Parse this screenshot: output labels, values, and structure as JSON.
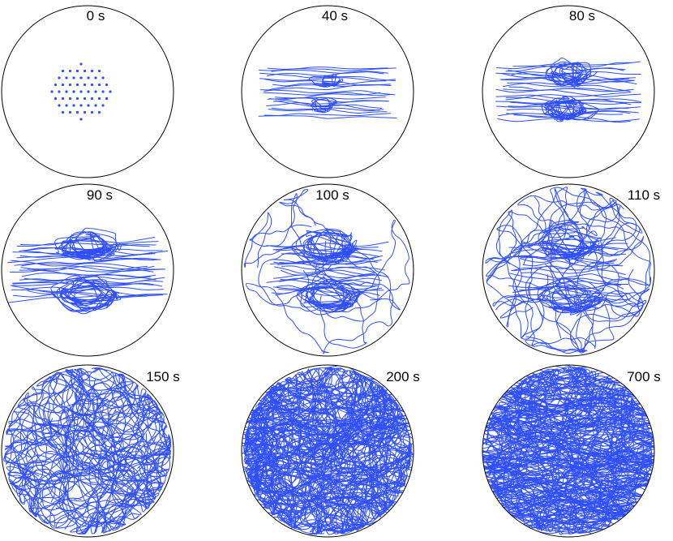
{
  "figure": {
    "trajectory_color": "#2f4fff",
    "panels": [
      {
        "time_label": "0 s",
        "stage": "initial"
      },
      {
        "time_label": "40 s",
        "stage": "stretch"
      },
      {
        "time_label": "80 s",
        "stage": "fold"
      },
      {
        "time_label": "90 s",
        "stage": "fold-wide"
      },
      {
        "time_label": "100 s",
        "stage": "escape"
      },
      {
        "time_label": "110 s",
        "stage": "spread"
      },
      {
        "time_label": "150 s",
        "stage": "mixed"
      },
      {
        "time_label": "200 s",
        "stage": "dense"
      },
      {
        "time_label": "700 s",
        "stage": "saturated"
      }
    ]
  }
}
